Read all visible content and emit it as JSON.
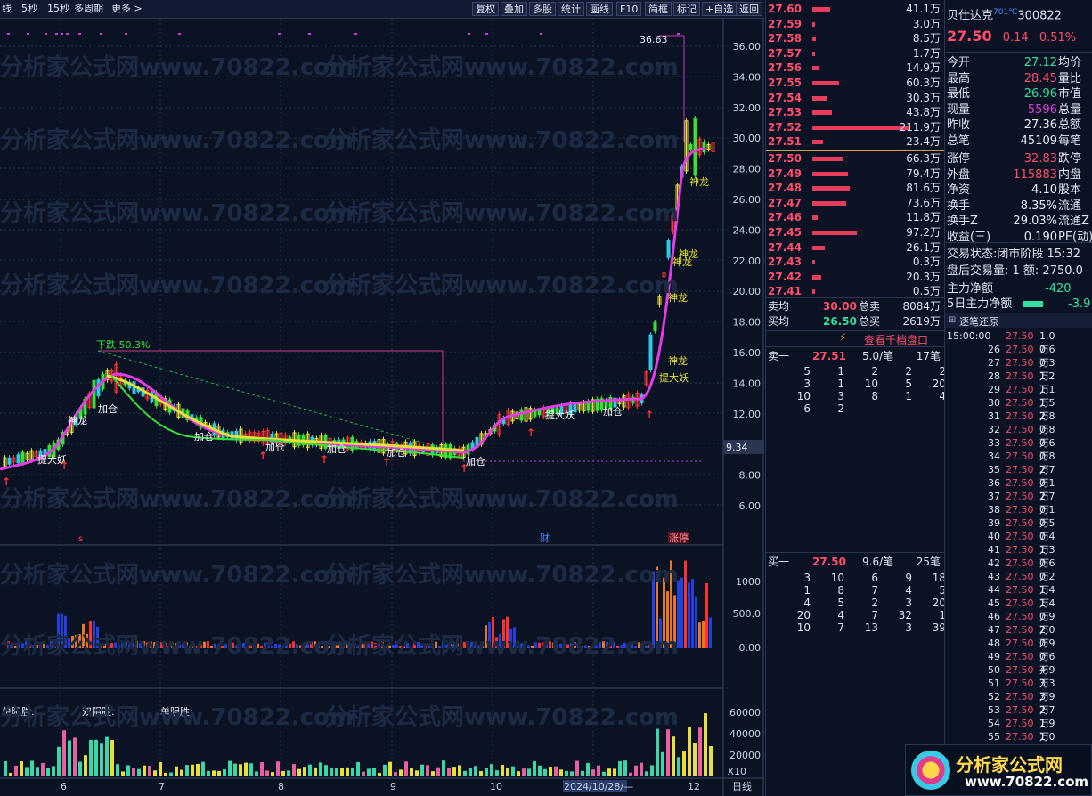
{
  "toolbar": {
    "left_items": [
      "线",
      "5秒",
      "15秒",
      "多周期",
      "更多 >"
    ],
    "buttons": [
      "复权",
      "叠加",
      "多股",
      "统计",
      "画线",
      "F10",
      "简框",
      "标记",
      "+自选",
      "返回"
    ]
  },
  "chart": {
    "price_axis": [
      "36.00",
      "34.00",
      "32.00",
      "30.00",
      "28.00",
      "26.00",
      "24.00",
      "22.00",
      "20.00",
      "18.00",
      "16.00",
      "14.00",
      "12.00",
      "10.00",
      "8.00",
      "6.00"
    ],
    "current_price_label": "9.34",
    "high_label": "36.63",
    "drop_label": "下跌 50.3%",
    "signals": [
      "提大妖",
      "神龙",
      "加仓",
      "加仓",
      "加仓",
      "加仓",
      "加仓",
      "加仓",
      "提大妖",
      "加仓",
      "神龙",
      "提大妖",
      "神龙",
      "神龙",
      "神龙",
      "神龙"
    ],
    "event_marks": {
      "left": "s",
      "mid": "财",
      "right": "涨停"
    },
    "volume_axis": [
      "1000",
      "500.0",
      "0.00"
    ],
    "indicator_labels": [
      "单阳胜:",
      "双阴胜:",
      "单阴胜:"
    ],
    "indicator_axis": [
      "60000",
      "40000",
      "20000",
      "X10"
    ],
    "x_axis": [
      "6",
      "7",
      "8",
      "9",
      "10",
      "2024/10/28/—",
      "12",
      "日线"
    ]
  },
  "stock": {
    "name": "贝仕达克",
    "code": "300822",
    "tag": "701℃",
    "price": "27.50",
    "change": "0.14",
    "pct": "0.51%"
  },
  "asks": [
    {
      "p": "27.60",
      "v": "41.1万",
      "w": 0.1
    },
    {
      "p": "27.59",
      "v": "3.0万",
      "w": 0.01
    },
    {
      "p": "27.58",
      "v": "8.5万",
      "w": 0.02
    },
    {
      "p": "27.57",
      "v": "1.7万",
      "w": 0.01
    },
    {
      "p": "27.56",
      "v": "14.9万",
      "w": 0.04
    },
    {
      "p": "27.55",
      "v": "60.3万",
      "w": 0.15
    },
    {
      "p": "27.54",
      "v": "30.3万",
      "w": 0.08
    },
    {
      "p": "27.53",
      "v": "43.8万",
      "w": 0.11
    },
    {
      "p": "27.52",
      "v": "211.9万",
      "w": 0.55
    },
    {
      "p": "27.51",
      "v": "23.4万",
      "w": 0.06
    }
  ],
  "bids": [
    {
      "p": "27.50",
      "v": "66.3万",
      "w": 0.17
    },
    {
      "p": "27.49",
      "v": "79.4万",
      "w": 0.2
    },
    {
      "p": "27.48",
      "v": "81.6万",
      "w": 0.21
    },
    {
      "p": "27.47",
      "v": "73.6万",
      "w": 0.19
    },
    {
      "p": "27.46",
      "v": "11.8万",
      "w": 0.03
    },
    {
      "p": "27.45",
      "v": "97.2万",
      "w": 0.25
    },
    {
      "p": "27.44",
      "v": "26.1万",
      "w": 0.07
    },
    {
      "p": "27.43",
      "v": "0.3万",
      "w": 0.01
    },
    {
      "p": "27.42",
      "v": "20.3万",
      "w": 0.05
    },
    {
      "p": "27.41",
      "v": "0.5万",
      "w": 0.01
    }
  ],
  "summary": {
    "sell_avg_label": "卖均",
    "sell_avg": "30.00",
    "sell_total_label": "总卖",
    "sell_total": "8084万",
    "buy_avg_label": "买均",
    "buy_avg": "26.50",
    "buy_total_label": "总买",
    "buy_total": "2619万",
    "thousand_link": "查看千档盘口"
  },
  "stats": [
    {
      "k": "今开",
      "v": "27.12",
      "k2": "均价",
      "c": "g"
    },
    {
      "k": "最高",
      "v": "28.45",
      "k2": "量比",
      "c": "r"
    },
    {
      "k": "最低",
      "v": "26.96",
      "k2": "市值",
      "c": "g"
    },
    {
      "k": "现量",
      "v": "5596",
      "k2": "总量",
      "c": "m"
    },
    {
      "k": "昨收",
      "v": "27.36",
      "k2": "总额",
      "c": "w"
    },
    {
      "k": "总笔",
      "v": "45109",
      "k2": "每笔",
      "c": "w"
    },
    {
      "k": "涨停",
      "v": "32.83",
      "k2": "跌停",
      "c": "r"
    },
    {
      "k": "外盘",
      "v": "115883",
      "k2": "内盘",
      "c": "r"
    },
    {
      "k": "净资",
      "v": "4.10",
      "k2": "股本",
      "c": "w"
    },
    {
      "k": "换手",
      "v": "8.35%",
      "k2": "流通",
      "c": "w"
    },
    {
      "k": "换手Z",
      "v": "29.03%",
      "k2": "流通Z",
      "c": "w"
    },
    {
      "k": "收益(三)",
      "v": "0.190",
      "k2": "PE(动)",
      "c": "w"
    }
  ],
  "trade_state": {
    "label": "交易状态:",
    "value": "闭市阶段 15:32"
  },
  "after_hours": {
    "text": "盘后交易量: 1  额: 2750.0"
  },
  "main_force": {
    "label": "主力净额",
    "value": "-420"
  },
  "main_force5": {
    "label": "5日主力净额",
    "value": "-3.9"
  },
  "tick_title": "逐笔还原",
  "sell1": {
    "label": "卖一",
    "price": "27.51",
    "per": "5.0/笔",
    "count": "17笔",
    "grid": [
      [
        "5",
        "1",
        "2",
        "2",
        "2"
      ],
      [
        "3",
        "1",
        "10",
        "5",
        "20"
      ],
      [
        "10",
        "3",
        "8",
        "1",
        "4"
      ],
      [
        "6",
        "2",
        "",
        "",
        ""
      ]
    ]
  },
  "buy1": {
    "label": "买一",
    "price": "27.50",
    "per": "9.6/笔",
    "count": "25笔",
    "grid": [
      [
        "3",
        "10",
        "6",
        "9",
        "18"
      ],
      [
        "1",
        "8",
        "7",
        "4",
        "5"
      ],
      [
        "4",
        "5",
        "2",
        "3",
        "20"
      ],
      [
        "20",
        "4",
        "7",
        "32",
        "1"
      ],
      [
        "10",
        "7",
        "13",
        "3",
        "39"
      ]
    ]
  },
  "ticks": [
    {
      "t": "15:00:00",
      "p": "27.50",
      "v": "1.0万"
    },
    {
      "t": "26",
      "p": "27.50",
      "v": "0.6万"
    },
    {
      "t": "27",
      "p": "27.50",
      "v": "0.3万"
    },
    {
      "t": "28",
      "p": "27.50",
      "v": "1.2万"
    },
    {
      "t": "29",
      "p": "27.50",
      "v": "1.1万"
    },
    {
      "t": "30",
      "p": "27.50",
      "v": "1.5万"
    },
    {
      "t": "31",
      "p": "27.50",
      "v": "2.8万"
    },
    {
      "t": "32",
      "p": "27.50",
      "v": "0.8万"
    },
    {
      "t": "33",
      "p": "27.50",
      "v": "0.6万"
    },
    {
      "t": "34",
      "p": "27.50",
      "v": "0.8万"
    },
    {
      "t": "35",
      "p": "27.50",
      "v": "2.7万"
    },
    {
      "t": "36",
      "p": "27.50",
      "v": "0.1万"
    },
    {
      "t": "37",
      "p": "27.50",
      "v": "2.7万"
    },
    {
      "t": "38",
      "p": "27.50",
      "v": "0.1万"
    },
    {
      "t": "39",
      "p": "27.50",
      "v": "0.5万"
    },
    {
      "t": "40",
      "p": "27.50",
      "v": "0.4万"
    },
    {
      "t": "41",
      "p": "27.50",
      "v": "1.3万"
    },
    {
      "t": "42",
      "p": "27.50",
      "v": "0.6万"
    },
    {
      "t": "43",
      "p": "27.50",
      "v": "0.2万"
    },
    {
      "t": "44",
      "p": "27.50",
      "v": "1.4万"
    },
    {
      "t": "45",
      "p": "27.50",
      "v": "1.4万"
    },
    {
      "t": "46",
      "p": "27.50",
      "v": "0.9万"
    },
    {
      "t": "47",
      "p": "27.50",
      "v": "2.0万"
    },
    {
      "t": "48",
      "p": "27.50",
      "v": "0.9万"
    },
    {
      "t": "49",
      "p": "27.50",
      "v": "0.6万"
    },
    {
      "t": "50",
      "p": "27.50",
      "v": "4.9万"
    },
    {
      "t": "51",
      "p": "27.50",
      "v": "3.3万"
    },
    {
      "t": "52",
      "p": "27.50",
      "v": "3.9万"
    },
    {
      "t": "53",
      "p": "27.50",
      "v": "2.7万"
    },
    {
      "t": "54",
      "p": "27.50",
      "v": "1.9万"
    },
    {
      "t": "55",
      "p": "27.50",
      "v": "1.0万"
    }
  ],
  "brand": {
    "text": "分析家公式网",
    "url": "www.70822.com"
  },
  "watermark": "分析家公式网www.70822.com"
}
